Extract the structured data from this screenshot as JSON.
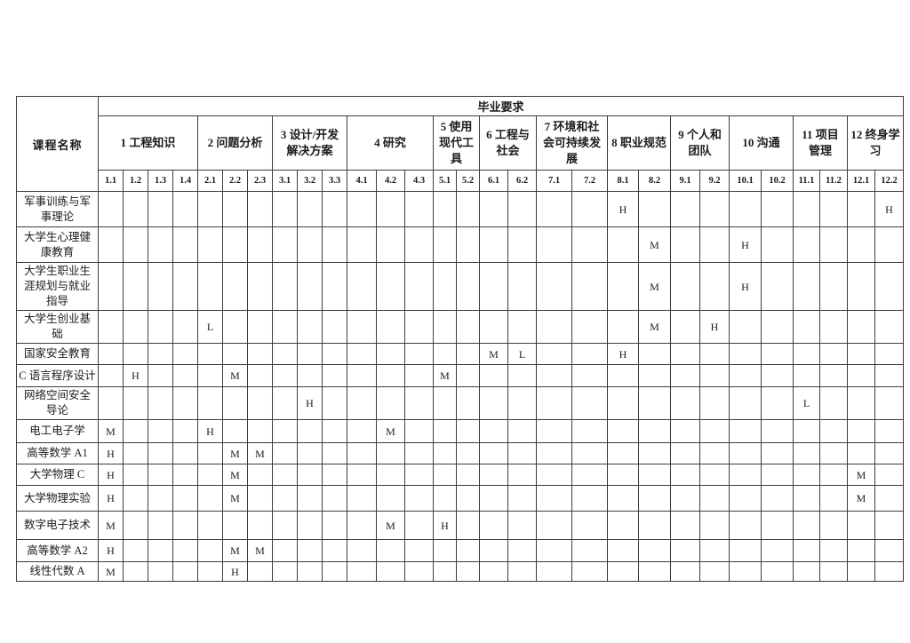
{
  "table": {
    "corner_header": "课程名称",
    "top_header": "毕业要求",
    "groups": [
      {
        "label": "1 工程知识",
        "subs": [
          "1.1",
          "1.2",
          "1.3",
          "1.4"
        ]
      },
      {
        "label": "2 问题分析",
        "subs": [
          "2.1",
          "2.2",
          "2.3"
        ]
      },
      {
        "label": "3 设计/开发解决方案",
        "subs": [
          "3.1",
          "3.2",
          "3.3"
        ]
      },
      {
        "label": "4 研究",
        "subs": [
          "4.1",
          "4.2",
          "4.3"
        ]
      },
      {
        "label": "5 使用现代工具",
        "subs": [
          "5.1",
          "5.2"
        ]
      },
      {
        "label": "6 工程与社会",
        "subs": [
          "6.1",
          "6.2"
        ]
      },
      {
        "label": "7 环境和社会可持续发展",
        "subs": [
          "7.1",
          "7.2"
        ]
      },
      {
        "label": "8 职业规范",
        "subs": [
          "8.1",
          "8.2"
        ]
      },
      {
        "label": "9 个人和团队",
        "subs": [
          "9.1",
          "9.2"
        ]
      },
      {
        "label": "10 沟通",
        "subs": [
          "10.1",
          "10.2"
        ]
      },
      {
        "label": "11 项目管理",
        "subs": [
          "11.1",
          "11.2"
        ]
      },
      {
        "label": "12 终身学习",
        "subs": [
          "12.1",
          "12.2"
        ]
      }
    ],
    "rows": [
      {
        "course": "军事训练与军事理论",
        "marks": {
          "8.1": "H",
          "12.2": "H"
        }
      },
      {
        "course": "大学生心理健康教育",
        "marks": {
          "8.2": "M",
          "10.1": "H"
        }
      },
      {
        "course": "大学生职业生涯规划与就业指导",
        "marks": {
          "8.2": "M",
          "10.1": "H"
        }
      },
      {
        "course": "大学生创业基础",
        "marks": {
          "2.1": "L",
          "8.2": "M",
          "9.2": "H"
        }
      },
      {
        "course": "国家安全教育",
        "marks": {
          "6.1": "M",
          "6.2": "L",
          "8.1": "H"
        }
      },
      {
        "course": "C 语言程序设计",
        "marks": {
          "1.2": "H",
          "2.2": "M",
          "5.1": "M"
        }
      },
      {
        "course": "网络空间安全导论",
        "marks": {
          "3.2": "H",
          "11.1": "L"
        }
      },
      {
        "course": "电工电子学",
        "marks": {
          "1.1": "M",
          "2.1": "H",
          "4.2": "M"
        }
      },
      {
        "course": "高等数学 A1",
        "marks": {
          "1.1": "H",
          "2.2": "M",
          "2.3": "M"
        }
      },
      {
        "course": "大学物理 C",
        "marks": {
          "1.1": "H",
          "2.2": "M",
          "12.1": "M"
        }
      },
      {
        "course": "大学物理实验",
        "marks": {
          "1.1": "H",
          "2.2": "M",
          "12.1": "M"
        }
      },
      {
        "course": "数字电子技术",
        "marks": {
          "1.1": "M",
          "4.2": "M",
          "5.1": "H"
        }
      },
      {
        "course": "高等数学 A2",
        "marks": {
          "1.1": "H",
          "2.2": "M",
          "2.3": "M"
        }
      },
      {
        "course": "线性代数 A",
        "marks": {
          "1.1": "M",
          "2.2": "H"
        }
      }
    ]
  }
}
